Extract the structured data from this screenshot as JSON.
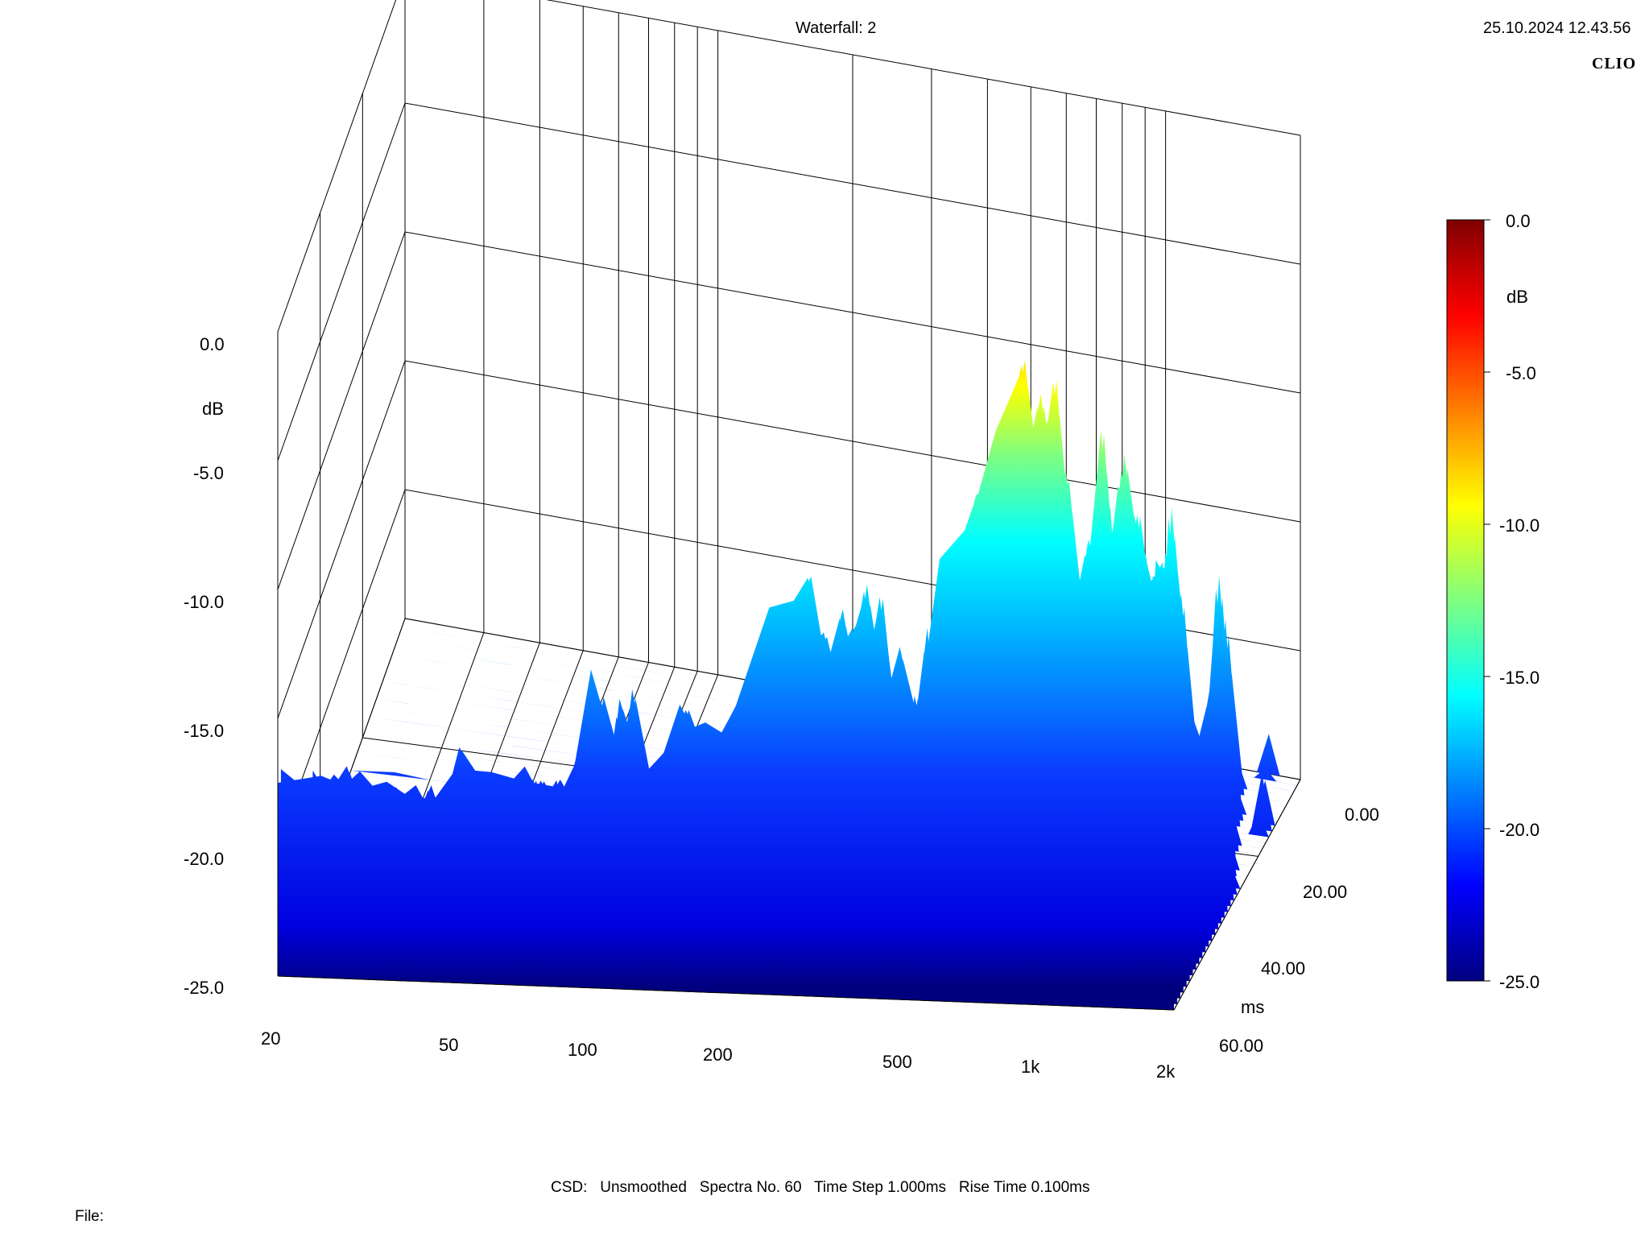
{
  "header": {
    "title": "Waterfall: 2",
    "datetime": "25.10.2024 12.43.56",
    "brand": "CLIO"
  },
  "footer": {
    "csd": "CSD:   Unsmoothed   Spectra No. 60   Time Step 1.000ms   Rise Time 0.100ms",
    "file_label": "File:"
  },
  "chart_data": {
    "type": "waterfall",
    "title": "Waterfall: 2",
    "z_axis": {
      "unit": "dB",
      "ticks": [
        "0.0",
        "-5.0",
        "-10.0",
        "-15.0",
        "-20.0",
        "-25.0"
      ],
      "range": [
        -25,
        0
      ]
    },
    "x_axis": {
      "scale": "log",
      "ticks": [
        "20",
        "50",
        "100",
        "200",
        "500",
        "1k",
        "2k"
      ],
      "range": [
        20,
        2000
      ]
    },
    "time_axis": {
      "unit": "ms",
      "ticks": [
        "0.00",
        "20.00",
        "40.00",
        "60.00"
      ],
      "range": [
        0,
        60
      ]
    },
    "colorbar": {
      "unit": "dB",
      "ticks": [
        "0.0",
        "-5.0",
        "-10.0",
        "-15.0",
        "-20.0",
        "-25.0"
      ],
      "range": [
        -25,
        0
      ]
    },
    "front_slice": {
      "freq": [
        20,
        25,
        30,
        35,
        40,
        45,
        50,
        60,
        70,
        80,
        90,
        100,
        120,
        140,
        160,
        180,
        200,
        250,
        300,
        350,
        400,
        450,
        500,
        600,
        700,
        800,
        900,
        1000,
        1100,
        1200,
        1300,
        1400,
        1500,
        1600,
        1700,
        1800,
        1900,
        2000
      ],
      "db": [
        -17.5,
        -17.2,
        -17.6,
        -17.4,
        -17.8,
        -18,
        -16.5,
        -17,
        -16.8,
        -17.5,
        -17,
        -13,
        -17,
        -16.5,
        -14.5,
        -15,
        -14.5,
        -10.5,
        -9,
        -14,
        -9.3,
        -15,
        -17.5,
        -8.5,
        -5.8,
        -3.5,
        0,
        -6,
        -9.5,
        -12,
        -11,
        -10,
        -4,
        -6,
        -9,
        -12,
        -12,
        -15
      ]
    }
  },
  "colors": {
    "colormap": [
      "#00007f",
      "#0000ff",
      "#007fff",
      "#00ffff",
      "#7fff7f",
      "#ffff00",
      "#ff7f00",
      "#ff0000",
      "#7f0000"
    ],
    "grid": "#000000"
  }
}
